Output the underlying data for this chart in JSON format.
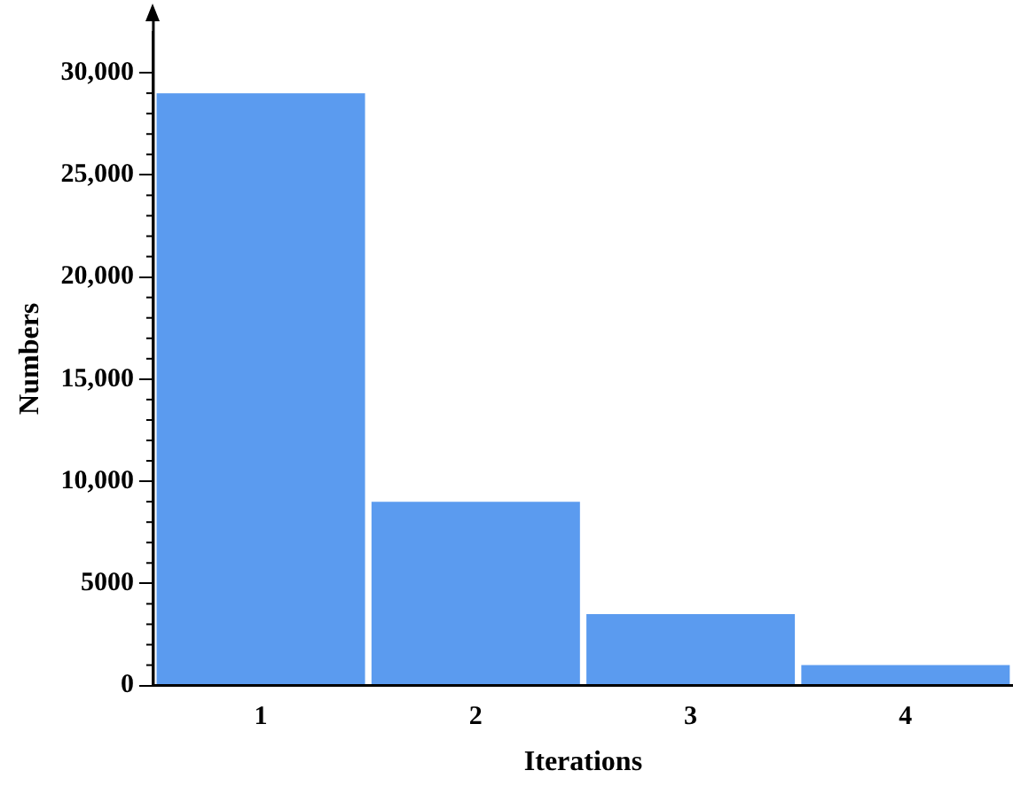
{
  "chart_data": {
    "type": "bar",
    "xlabel": "Iterations",
    "ylabel": "Numbers",
    "categories": [
      "1",
      "2",
      "3",
      "4"
    ],
    "values": [
      29000,
      9000,
      3500,
      1000
    ],
    "color": "#5b9bef",
    "ylim": [
      0,
      32000
    ],
    "yticks": [
      0,
      {
        "value": 5000,
        "label": "5000"
      },
      {
        "value": 10000,
        "label": "10,000"
      },
      {
        "value": 15000,
        "label": "15,000"
      },
      {
        "value": 20000,
        "label": "20,000"
      },
      {
        "value": 25000,
        "label": "25,000"
      },
      {
        "value": 30000,
        "label": "30,000"
      }
    ],
    "grid": false,
    "legend": false
  }
}
